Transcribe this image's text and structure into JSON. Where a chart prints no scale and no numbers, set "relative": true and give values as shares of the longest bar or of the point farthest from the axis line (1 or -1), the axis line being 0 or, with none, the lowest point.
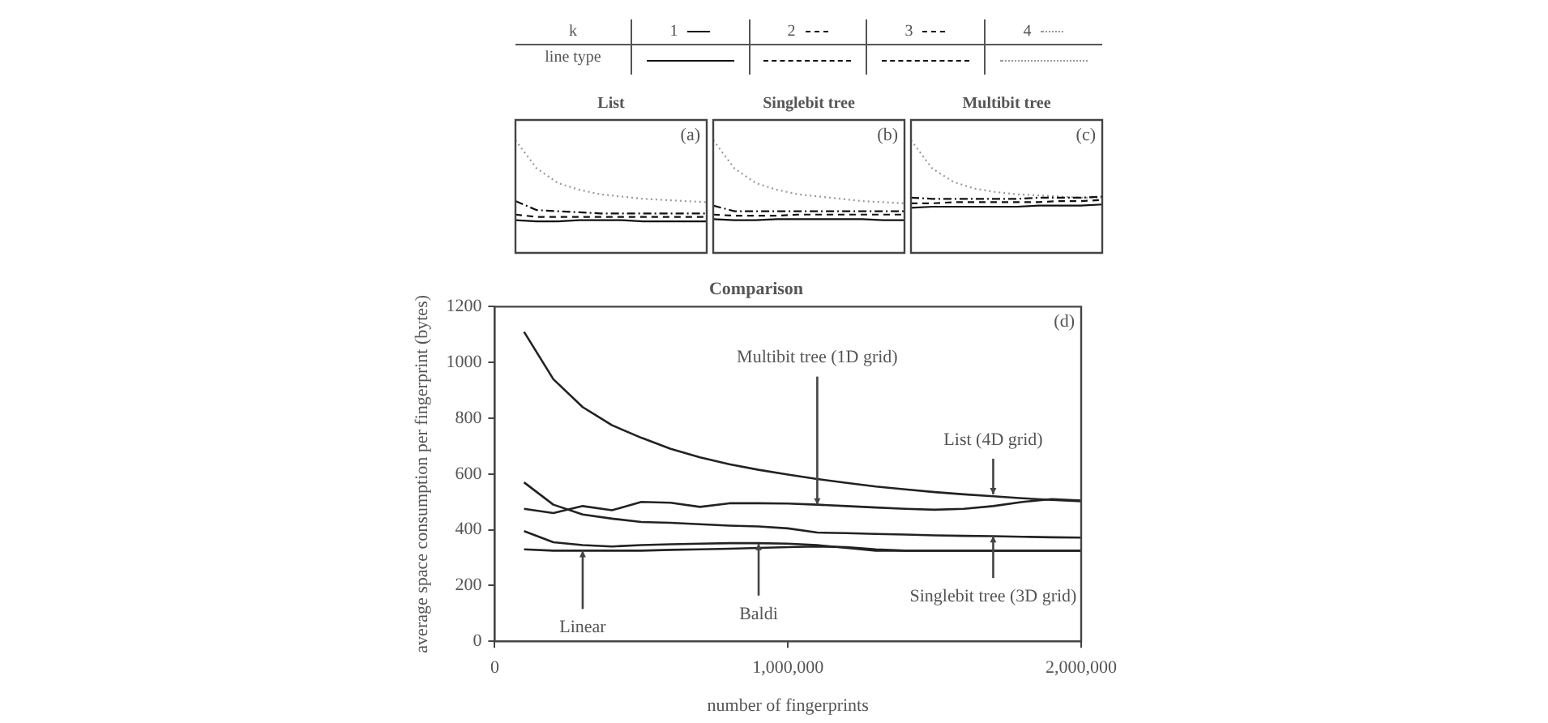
{
  "chart_data": [
    {
      "type": "line",
      "title": "List",
      "relative": true,
      "legend": "top",
      "legend_title": "k",
      "categories": [
        null,
        null,
        null,
        null,
        null,
        null,
        null,
        null,
        null,
        null
      ],
      "annotations": [
        "(a)",
        "line type"
      ],
      "series": [
        {
          "name": "1",
          "color": "#111111",
          "line_style": "solid",
          "values": [
            0.29,
            0.28,
            0.28,
            0.29,
            0.29,
            0.29,
            0.28,
            0.28,
            0.28,
            0.28
          ]
        },
        {
          "name": "2",
          "color": "#111111",
          "line_style": "dashed",
          "values": [
            0.34,
            0.32,
            0.32,
            0.32,
            0.32,
            0.32,
            0.32,
            0.32,
            0.32,
            0.32
          ]
        },
        {
          "name": "3",
          "color": "#111111",
          "line_style": "dashdot",
          "values": [
            0.46,
            0.38,
            0.37,
            0.36,
            0.35,
            0.35,
            0.35,
            0.35,
            0.35,
            0.35
          ]
        },
        {
          "name": "4",
          "color": "#999999",
          "line_style": "dotted",
          "values": [
            1,
            0.75,
            0.62,
            0.56,
            0.52,
            0.5,
            0.48,
            0.47,
            0.46,
            0.45
          ]
        }
      ]
    },
    {
      "type": "line",
      "title": "Singlebit tree",
      "relative": true,
      "categories": [
        null,
        null,
        null,
        null,
        null,
        null,
        null,
        null,
        null,
        null
      ],
      "annotations": [
        "(b)"
      ],
      "series": [
        {
          "color": "#111111",
          "line_style": "solid",
          "values": [
            0.3,
            0.29,
            0.29,
            0.3,
            0.3,
            0.3,
            0.3,
            0.3,
            0.29,
            0.29
          ]
        },
        {
          "color": "#111111",
          "line_style": "dashed",
          "values": [
            0.34,
            0.33,
            0.33,
            0.33,
            0.34,
            0.34,
            0.34,
            0.34,
            0.34,
            0.34
          ]
        },
        {
          "color": "#111111",
          "line_style": "dashdot",
          "values": [
            0.42,
            0.37,
            0.37,
            0.37,
            0.37,
            0.37,
            0.37,
            0.37,
            0.37,
            0.37
          ]
        },
        {
          "color": "#999999",
          "line_style": "dotted",
          "values": [
            1,
            0.75,
            0.62,
            0.56,
            0.52,
            0.5,
            0.48,
            0.46,
            0.45,
            0.44
          ]
        }
      ]
    },
    {
      "type": "line",
      "title": "Multibit tree",
      "relative": true,
      "categories": [
        null,
        null,
        null,
        null,
        null,
        null,
        null,
        null,
        null,
        null
      ],
      "annotations": [
        "(c)"
      ],
      "series": [
        {
          "color": "#111111",
          "line_style": "solid",
          "values": [
            0.4,
            0.41,
            0.41,
            0.41,
            0.41,
            0.41,
            0.42,
            0.42,
            0.42,
            0.43
          ]
        },
        {
          "color": "#111111",
          "line_style": "dashed",
          "values": [
            0.44,
            0.44,
            0.45,
            0.45,
            0.45,
            0.45,
            0.45,
            0.46,
            0.46,
            0.47
          ]
        },
        {
          "color": "#111111",
          "line_style": "dashdot",
          "values": [
            0.49,
            0.48,
            0.48,
            0.48,
            0.48,
            0.48,
            0.49,
            0.49,
            0.49,
            0.5
          ]
        },
        {
          "color": "#999999",
          "line_style": "dotted",
          "values": [
            1,
            0.75,
            0.63,
            0.57,
            0.54,
            0.52,
            0.51,
            0.5,
            0.49,
            0.49
          ]
        }
      ]
    },
    {
      "type": "line",
      "title": "Comparison",
      "xlabel": "number of fingerprints",
      "ylabel": "average space consumption per fingerprint (bytes)",
      "xlim": [
        0,
        2000000
      ],
      "ylim": [
        0,
        1200
      ],
      "xticks": [
        0,
        {
          "value": 1000000,
          "label": "1,000,000"
        },
        {
          "value": 2000000,
          "label": "2,000,000"
        }
      ],
      "yticks": [
        0,
        200,
        400,
        600,
        800,
        1000,
        1200
      ],
      "x": [
        100000,
        200000,
        300000,
        400000,
        500000,
        600000,
        700000,
        800000,
        900000,
        1000000,
        1100000,
        1200000,
        1300000,
        1400000,
        1500000,
        1600000,
        1700000,
        1800000,
        1900000,
        2000000
      ],
      "annotations": [
        "(d)",
        {
          "text": "Multibit tree (1D grid)",
          "x": 1100000,
          "y": 490
        },
        {
          "text": "List (4D grid)",
          "x": 1700000,
          "y": 527
        },
        {
          "text": "Singlebit tree (3D grid)",
          "x": 1700000,
          "y": 378
        },
        {
          "text": "Linear",
          "x": 300000,
          "y": 325
        },
        {
          "text": "Baldi",
          "x": 900000,
          "y": 350
        }
      ],
      "series": [
        {
          "color": "#222222",
          "values": [
            1110,
            940,
            840,
            775,
            730,
            690,
            660,
            635,
            615,
            598,
            582,
            568,
            555,
            545,
            535,
            527,
            520,
            513,
            507,
            502
          ]
        },
        {
          "color": "#222222",
          "values": [
            475,
            460,
            485,
            470,
            500,
            497,
            482,
            495,
            495,
            494,
            490,
            485,
            480,
            475,
            472,
            475,
            485,
            500,
            510,
            505
          ]
        },
        {
          "color": "#222222",
          "values": [
            570,
            490,
            455,
            440,
            428,
            425,
            420,
            415,
            412,
            405,
            390,
            388,
            385,
            383,
            380,
            378,
            377,
            375,
            373,
            372
          ]
        },
        {
          "color": "#222222",
          "values": [
            395,
            355,
            345,
            340,
            345,
            348,
            350,
            352,
            352,
            350,
            345,
            335,
            325,
            325,
            325,
            325,
            325,
            325,
            325,
            325
          ]
        },
        {
          "color": "#222222",
          "values": [
            330,
            325,
            325,
            325,
            325,
            328,
            330,
            332,
            335,
            338,
            340,
            338,
            330,
            325,
            325,
            325,
            325,
            325,
            325,
            325
          ]
        }
      ]
    }
  ]
}
